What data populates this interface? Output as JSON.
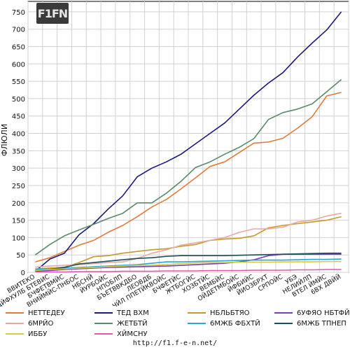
{
  "chart_data": {
    "type": "line",
    "title": "",
    "xlabel": "",
    "ylabel": "ФЛЮЛИ",
    "ylim": [
      0,
      780
    ],
    "yticks": [
      0,
      50,
      100,
      150,
      200,
      250,
      300,
      350,
      400,
      450,
      500,
      550,
      600,
      650,
      700,
      750
    ],
    "grid": true,
    "legend_position": "bottom",
    "categories": [
      "ВВИТЕКО",
      "ДЙФХУЛБ БТЕВИС",
      "БЧФЕТВМЙС",
      "ВНИЙМЙС-ПНБОС",
      "НБСНЙ",
      "ЙУРБОЙС",
      "НПОБЛП",
      "БЪЕТВВКДБО",
      "ЛЕОВДБ",
      "ЧЙЛ ППЕТЙКВОЙС",
      "БЧФЕТЙС",
      "ЖТБОГЙС",
      "ХОЗБТЙС",
      "ВЕМБЙС",
      "ОЙДЕТМБОЙС",
      "ЙФБИЙС",
      "ЙИОЗБРХТ",
      "СРПОЙС",
      "УБЭ",
      "НЕЛИЙЛП",
      "ВТЕЛ ЙМЙС",
      "6ВХ ДВЙЙ"
    ],
    "series": [
      {
        "name": "НЕТТЕДЕУ",
        "color": "#e07b39",
        "values": [
          30,
          42,
          60,
          78,
          92,
          115,
          135,
          160,
          188,
          210,
          240,
          272,
          305,
          318,
          345,
          372,
          375,
          386,
          415,
          448,
          508,
          518
        ]
      },
      {
        "name": "ТЕД ВХМ",
        "color": "#1a1a7a",
        "values": [
          3,
          38,
          55,
          108,
          140,
          182,
          220,
          275,
          300,
          318,
          340,
          370,
          400,
          430,
          470,
          510,
          545,
          575,
          620,
          660,
          698,
          750
        ]
      },
      {
        "name": "НБЛЬБТЯО",
        "color": "#c49b2a",
        "values": [
          10,
          12,
          15,
          28,
          45,
          48,
          55,
          60,
          65,
          68,
          75,
          80,
          92,
          96,
          98,
          105,
          128,
          135,
          140,
          145,
          150,
          160
        ]
      },
      {
        "name": "6УФЯО НБТФЙО",
        "color": "#7a3bb8",
        "values": [
          3,
          5,
          8,
          10,
          12,
          14,
          15,
          16,
          17,
          18,
          20,
          22,
          24,
          26,
          30,
          36,
          48,
          52,
          52,
          52,
          52,
          52
        ]
      },
      {
        "name": "6МРЙО",
        "color": "#e8a9a0",
        "values": [
          15,
          18,
          20,
          22,
          25,
          28,
          30,
          40,
          55,
          65,
          78,
          85,
          92,
          100,
          115,
          125,
          125,
          130,
          145,
          150,
          162,
          170
        ]
      },
      {
        "name": "ЖЕТБТЙ",
        "color": "#5a8a6a",
        "values": [
          50,
          80,
          105,
          122,
          138,
          155,
          170,
          200,
          200,
          228,
          262,
          302,
          318,
          340,
          360,
          385,
          440,
          460,
          470,
          485,
          520,
          555
        ]
      },
      {
        "name": "6МЖБ ФБХТЙ",
        "color": "#26a7d6",
        "values": [
          8,
          10,
          12,
          14,
          16,
          18,
          20,
          22,
          26,
          30,
          30,
          31,
          32,
          33,
          34,
          35,
          35,
          35,
          36,
          37,
          37,
          38
        ]
      },
      {
        "name": "6МЖБ ТПНЕП",
        "color": "#1c4f5e",
        "values": [
          4,
          8,
          14,
          24,
          28,
          32,
          36,
          40,
          42,
          46,
          48,
          48,
          48,
          48,
          49,
          50,
          51,
          52,
          53,
          54,
          55,
          55
        ]
      },
      {
        "name": "ИББУ",
        "color": "#d4cc3a",
        "values": [
          5,
          8,
          10,
          12,
          14,
          16,
          18,
          20,
          20,
          22,
          25,
          27,
          28,
          28,
          29,
          29,
          29,
          30,
          30,
          30,
          31,
          31
        ]
      },
      {
        "name": "ХЙМСНУ",
        "color": "#e655b0",
        "values": [
          1,
          1,
          1,
          2,
          2,
          2,
          3,
          3,
          3,
          4,
          4,
          4,
          5,
          5,
          5,
          6,
          6,
          6,
          7,
          7,
          8,
          8
        ]
      }
    ]
  },
  "footer": {
    "url": "http://f1.f-e-n.net/"
  },
  "logo": {
    "text": "F1FN"
  }
}
